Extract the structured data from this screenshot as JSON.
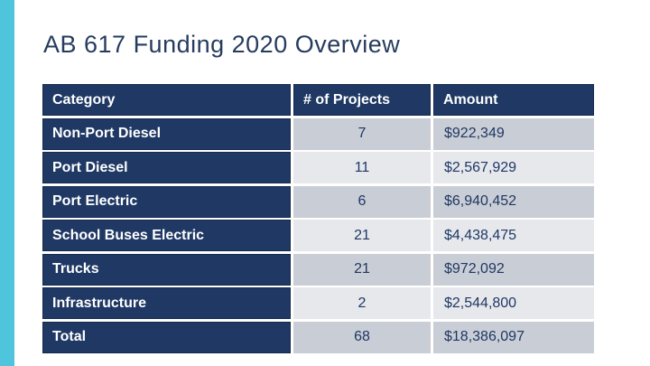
{
  "slide": {
    "title": "AB 617 Funding 2020 Overview",
    "accent_bar_color": "#4EC5DC",
    "background_color": "#FFFFFF",
    "title_color": "#263C5F"
  },
  "table": {
    "columns": [
      "Category",
      "# of Projects",
      "Amount"
    ],
    "rows": [
      {
        "category": "Non-Port Diesel",
        "projects": "7",
        "amount": "$922,349"
      },
      {
        "category": "Port Diesel",
        "projects": "11",
        "amount": "$2,567,929"
      },
      {
        "category": "Port Electric",
        "projects": "6",
        "amount": "$6,940,452"
      },
      {
        "category": "School Buses Electric",
        "projects": "21",
        "amount": "$4,438,475"
      },
      {
        "category": "Trucks",
        "projects": "21",
        "amount": "$972,092"
      },
      {
        "category": "Infrastructure",
        "projects": "2",
        "amount": "$2,544,800"
      },
      {
        "category": "Total",
        "projects": "68",
        "amount": "$18,386,097"
      }
    ],
    "colors": {
      "header_bg": "#1F3864",
      "header_text": "#FFFFFF",
      "category_bg": "#1F3864",
      "category_text": "#FFFFFF",
      "row_alt_dark": "#C9CDD5",
      "row_alt_light": "#E6E8EC",
      "value_text": "#1F3864"
    }
  },
  "chart_data": {
    "type": "table",
    "title": "AB 617 Funding 2020 Overview",
    "categories": [
      "Non-Port Diesel",
      "Port Diesel",
      "Port Electric",
      "School Buses Electric",
      "Trucks",
      "Infrastructure",
      "Total"
    ],
    "series": [
      {
        "name": "# of Projects",
        "values": [
          7,
          11,
          6,
          21,
          21,
          2,
          68
        ]
      },
      {
        "name": "Amount",
        "values": [
          922349,
          2567929,
          6940452,
          4438475,
          972092,
          2544800,
          18386097
        ]
      }
    ]
  }
}
